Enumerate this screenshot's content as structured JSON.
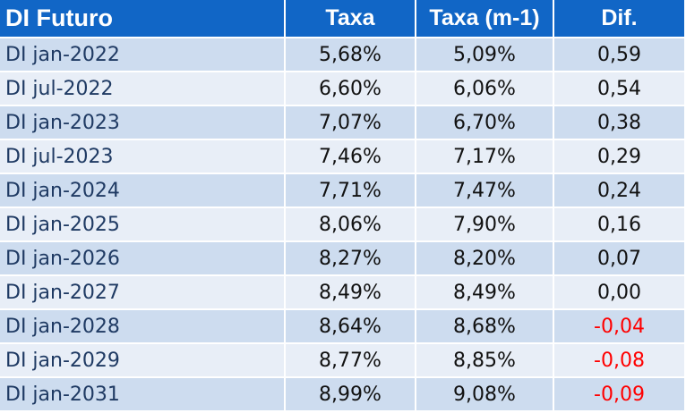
{
  "chart_data": {
    "type": "table",
    "columns": [
      "DI Futuro",
      "Taxa",
      "Taxa (m-1)",
      "Dif."
    ],
    "rows": [
      {
        "name": "DI  jan-2022",
        "taxa": "5,68%",
        "taxa_m1": "5,09%",
        "dif": "0,59"
      },
      {
        "name": "DI  jul-2022",
        "taxa": "6,60%",
        "taxa_m1": "6,06%",
        "dif": "0,54"
      },
      {
        "name": "DI  jan-2023",
        "taxa": "7,07%",
        "taxa_m1": "6,70%",
        "dif": "0,38"
      },
      {
        "name": "DI  jul-2023",
        "taxa": "7,46%",
        "taxa_m1": "7,17%",
        "dif": "0,29"
      },
      {
        "name": "DI  jan-2024",
        "taxa": "7,71%",
        "taxa_m1": "7,47%",
        "dif": "0,24"
      },
      {
        "name": "DI  jan-2025",
        "taxa": "8,06%",
        "taxa_m1": "7,90%",
        "dif": "0,16"
      },
      {
        "name": "DI  jan-2026",
        "taxa": "8,27%",
        "taxa_m1": "8,20%",
        "dif": "0,07"
      },
      {
        "name": "DI  jan-2027",
        "taxa": "8,49%",
        "taxa_m1": "8,49%",
        "dif": "0,00"
      },
      {
        "name": "DI  jan-2028",
        "taxa": "8,64%",
        "taxa_m1": "8,68%",
        "dif": "-0,04"
      },
      {
        "name": "DI  jan-2029",
        "taxa": "8,77%",
        "taxa_m1": "8,85%",
        "dif": "-0,08"
      },
      {
        "name": "DI  jan-2031",
        "taxa": "8,99%",
        "taxa_m1": "9,08%",
        "dif": "-0,09"
      }
    ]
  },
  "colors": {
    "header_bg": "#1166c6",
    "row_odd_bg": "#cddcef",
    "row_even_bg": "#e8eef7",
    "negative_text": "#ff0000"
  }
}
